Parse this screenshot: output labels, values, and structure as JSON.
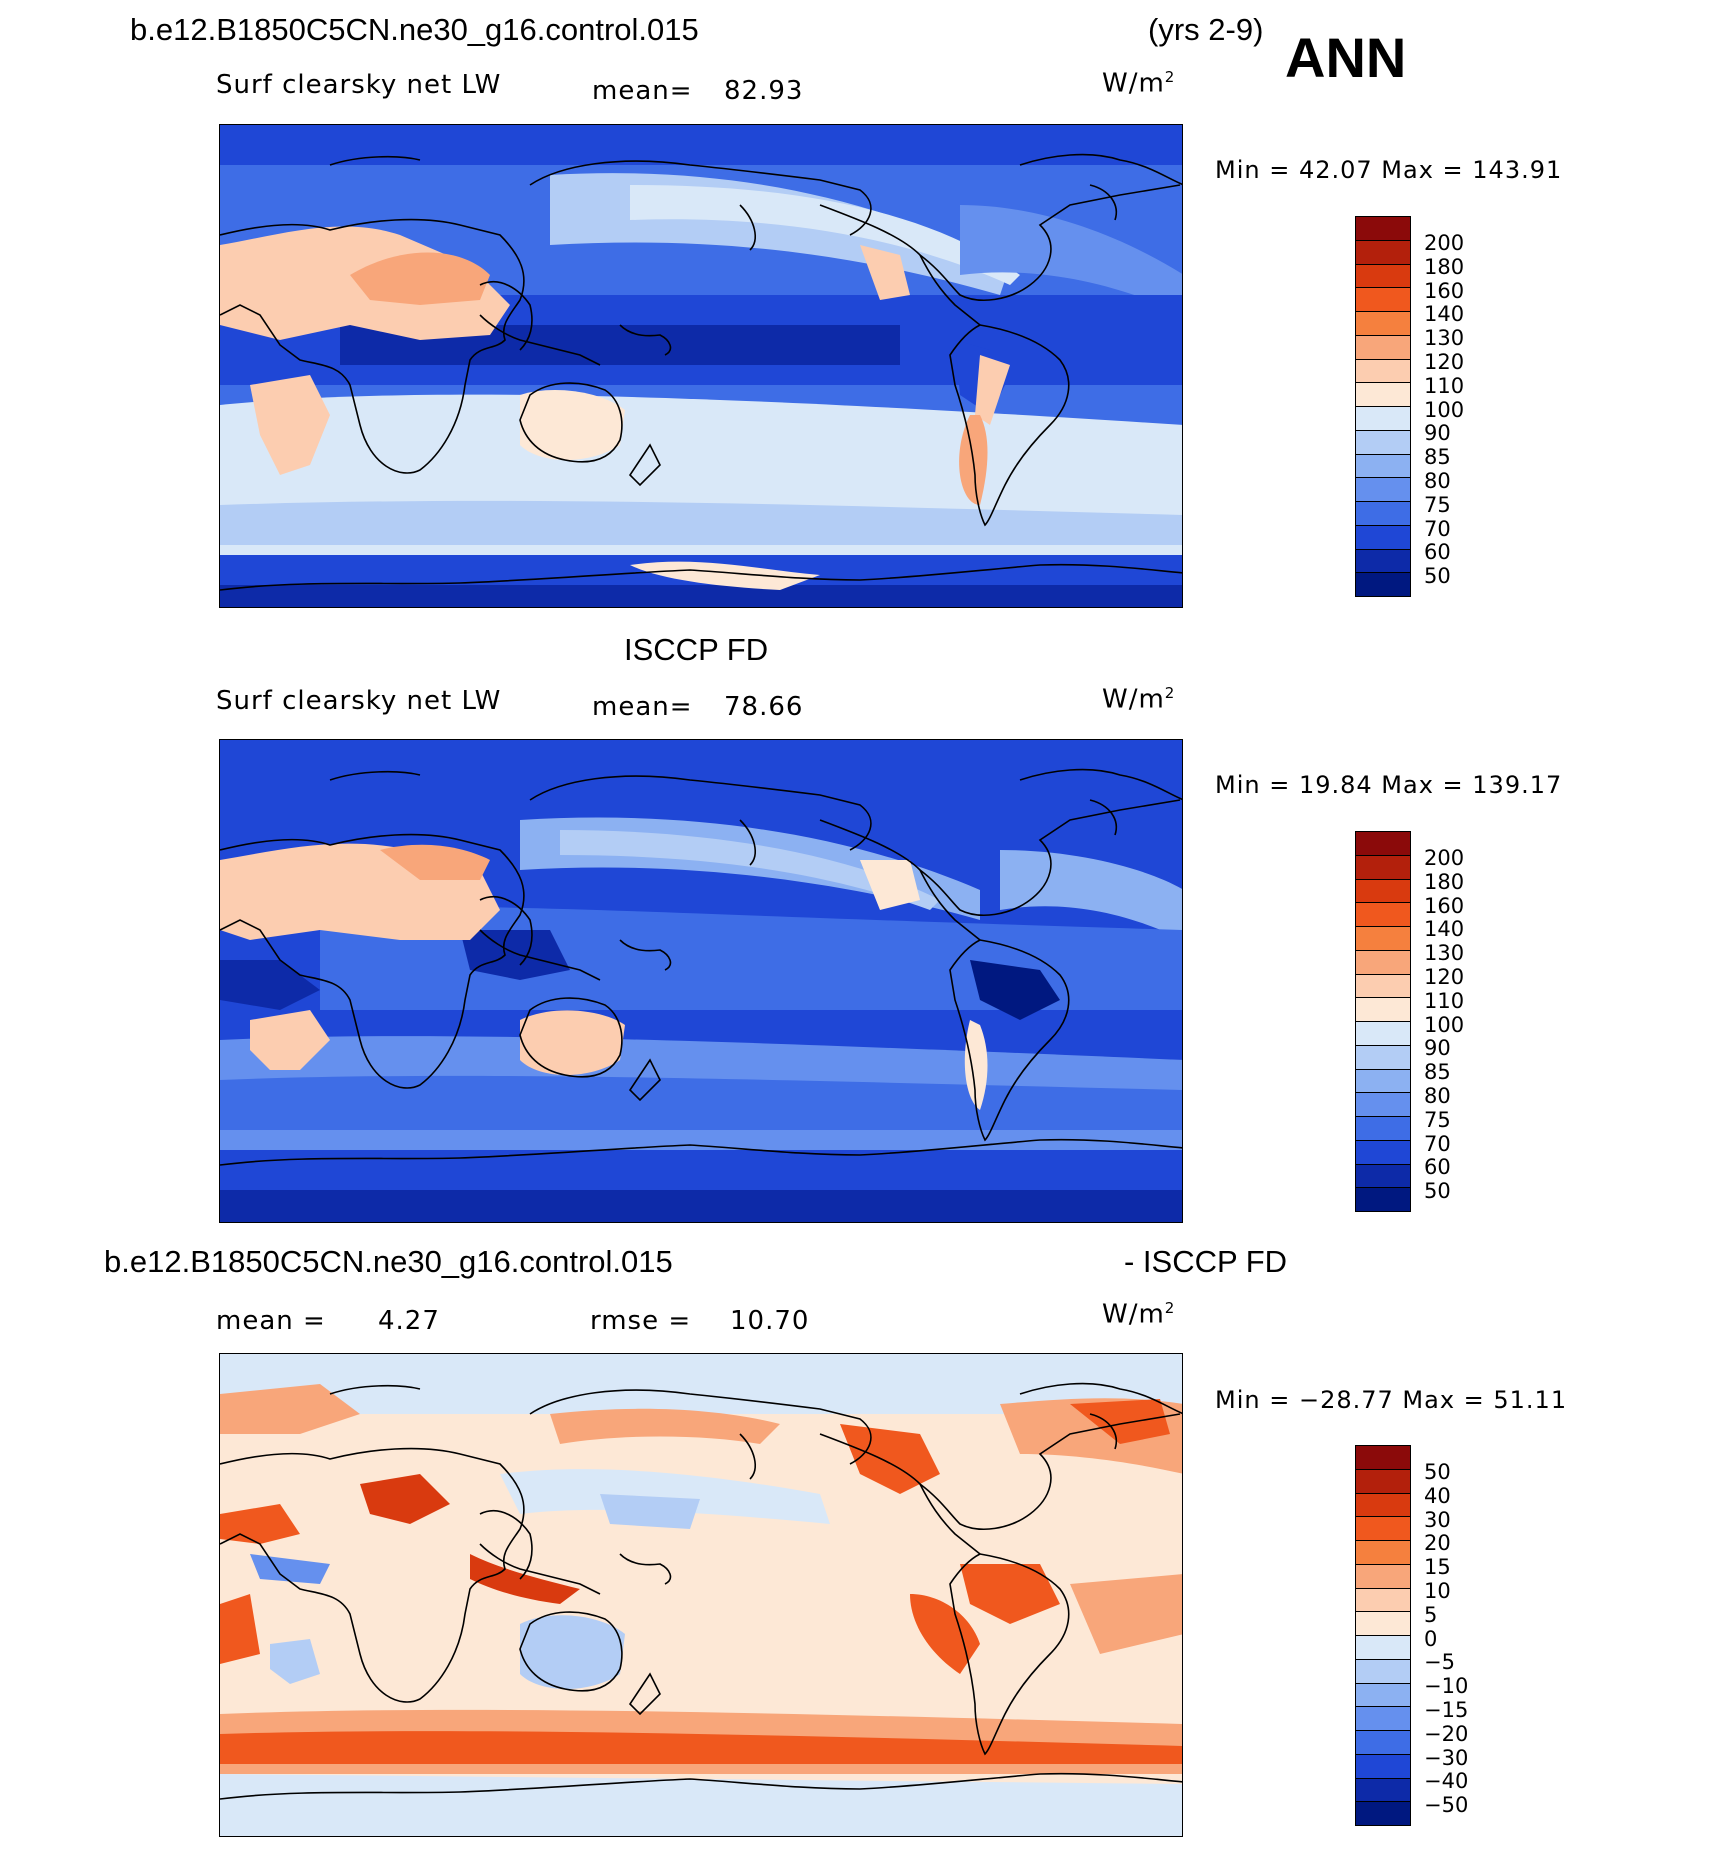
{
  "header": {
    "case_name": "b.e12.B1850C5CN.ne30_g16.control.015",
    "years": "(yrs 2-9)",
    "season": "ANN"
  },
  "panel1": {
    "variable": "Surf clearsky net LW",
    "mean_label": "mean=",
    "mean_value": "82.93",
    "units": "W/m",
    "units_exp": "2",
    "minmax": "Min =   42.07 Max = 143.91"
  },
  "panel2": {
    "title": "ISCCP FD",
    "variable": "Surf clearsky net LW",
    "mean_label": "mean=",
    "mean_value": "78.66",
    "units": "W/m",
    "units_exp": "2",
    "minmax": "Min =   19.84 Max = 139.17"
  },
  "panel3": {
    "title_left": "b.e12.B1850C5CN.ne30_g16.control.015",
    "title_right": "- ISCCP FD",
    "mean_label": "mean =",
    "mean_value": "4.27",
    "rmse_label": "rmse =",
    "rmse_value": "10.70",
    "units": "W/m",
    "units_exp": "2",
    "minmax": "Min = −28.77 Max =   51.11"
  },
  "colorbar_abs": {
    "labels": [
      "200",
      "180",
      "160",
      "140",
      "130",
      "120",
      "110",
      "100",
      "90",
      "85",
      "80",
      "75",
      "70",
      "60",
      "50"
    ],
    "colors": [
      "#8b0a0a",
      "#b3200c",
      "#d93a0f",
      "#f0581e",
      "#f5803e",
      "#f8a67a",
      "#fccdb0",
      "#fde8d6",
      "#d9e8f8",
      "#b3cdf5",
      "#8cb1f2",
      "#6590ee",
      "#3e6de6",
      "#1f47d6",
      "#0d2aa8",
      "#001880"
    ]
  },
  "colorbar_diff": {
    "labels": [
      "50",
      "40",
      "30",
      "20",
      "15",
      "10",
      "5",
      "0",
      "−5",
      "−10",
      "−15",
      "−20",
      "−30",
      "−40",
      "−50"
    ],
    "colors": [
      "#8b0a0a",
      "#b3200c",
      "#d93a0f",
      "#f0581e",
      "#f5803e",
      "#f8a67a",
      "#fccdb0",
      "#fde8d6",
      "#d9e8f8",
      "#b3cdf5",
      "#8cb1f2",
      "#6590ee",
      "#3e6de6",
      "#1f47d6",
      "#0d2aa8",
      "#001880"
    ]
  }
}
